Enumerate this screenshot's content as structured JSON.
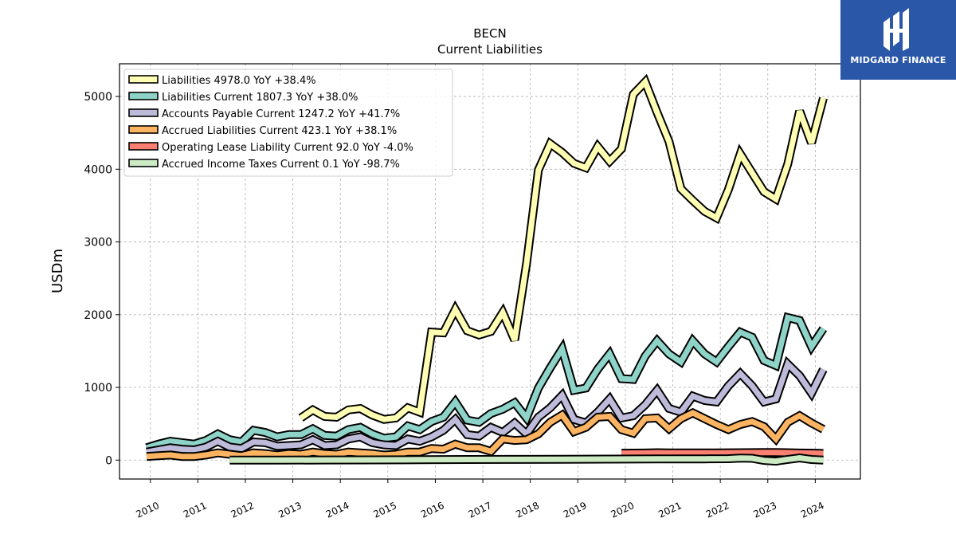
{
  "brand": {
    "name": "MIDGARD FINANCE"
  },
  "chart_data": {
    "type": "line",
    "title": "BECN",
    "subtitle": "Current  Liabilities",
    "xlabel": "",
    "ylabel": "USDm",
    "xlim": [
      2009.35,
      2024.95
    ],
    "ylim": [
      -260,
      5450
    ],
    "yticks": [
      0,
      1000,
      2000,
      3000,
      4000,
      5000
    ],
    "xticks": [
      2010,
      2011,
      2012,
      2013,
      2014,
      2015,
      2016,
      2017,
      2018,
      2019,
      2020,
      2021,
      2022,
      2023,
      2024
    ],
    "grid": true,
    "legend_position": "top-left",
    "series": [
      {
        "name": "Liabilities",
        "legend": "Liabilities  4978.0 YoY +38.4%",
        "color": "#ffffb3",
        "x": [
          2013.17,
          2013.42,
          2013.67,
          2013.92,
          2014.17,
          2014.42,
          2014.67,
          2014.92,
          2015.17,
          2015.42,
          2015.67,
          2015.92,
          2016.17,
          2016.42,
          2016.67,
          2016.92,
          2017.17,
          2017.42,
          2017.67,
          2017.92,
          2018.17,
          2018.42,
          2018.67,
          2018.92,
          2019.17,
          2019.42,
          2019.67,
          2019.92,
          2020.17,
          2020.42,
          2020.67,
          2020.92,
          2021.17,
          2021.42,
          2021.67,
          2021.92,
          2022.17,
          2022.42,
          2022.67,
          2022.92,
          2023.17,
          2023.42,
          2023.67,
          2023.92,
          2024.17
        ],
        "y": [
          580,
          690,
          600,
          590,
          690,
          710,
          620,
          560,
          580,
          720,
          660,
          1760,
          1750,
          2070,
          1780,
          1720,
          1770,
          2030,
          1650,
          2700,
          3990,
          4350,
          4230,
          4080,
          4020,
          4310,
          4110,
          4280,
          5030,
          5200,
          4780,
          4380,
          3730,
          3570,
          3420,
          3330,
          3720,
          4210,
          3950,
          3690,
          3590,
          4070,
          4800,
          4360,
          4978
        ]
      },
      {
        "name": "Liabilities Current",
        "legend": "Liabilities Current  1807.3 YoY +38.0%",
        "color": "#8dd3c7",
        "x": [
          2009.92,
          2010.17,
          2010.42,
          2010.67,
          2010.92,
          2011.17,
          2011.42,
          2011.67,
          2011.92,
          2012.17,
          2012.42,
          2012.67,
          2012.92,
          2013.17,
          2013.42,
          2013.67,
          2013.92,
          2014.17,
          2014.42,
          2014.67,
          2014.92,
          2015.17,
          2015.42,
          2015.67,
          2015.92,
          2016.17,
          2016.42,
          2016.67,
          2016.92,
          2017.17,
          2017.42,
          2017.67,
          2017.92,
          2018.17,
          2018.42,
          2018.67,
          2018.92,
          2019.17,
          2019.42,
          2019.67,
          2019.92,
          2020.17,
          2020.42,
          2020.67,
          2020.92,
          2021.17,
          2021.42,
          2021.67,
          2021.92,
          2022.17,
          2022.42,
          2022.67,
          2022.92,
          2023.17,
          2023.42,
          2023.67,
          2023.92,
          2024.17
        ],
        "y": [
          170,
          220,
          260,
          240,
          220,
          270,
          360,
          280,
          250,
          410,
          380,
          320,
          350,
          350,
          430,
          340,
          330,
          420,
          450,
          360,
          300,
          320,
          470,
          420,
          530,
          590,
          800,
          550,
          520,
          640,
          700,
          790,
          580,
          990,
          1270,
          1530,
          960,
          990,
          1250,
          1460,
          1120,
          1110,
          1430,
          1640,
          1460,
          1350,
          1640,
          1460,
          1350,
          1560,
          1760,
          1690,
          1370,
          1300,
          1960,
          1920,
          1560,
          1807
        ]
      },
      {
        "name": "Accounts Payable Current",
        "legend": "Accounts Payable Current  1247.2 YoY +41.7%",
        "color": "#bebada",
        "x": [
          2009.92,
          2010.17,
          2010.42,
          2010.67,
          2010.92,
          2011.17,
          2011.42,
          2011.67,
          2011.92,
          2012.17,
          2012.42,
          2012.67,
          2012.92,
          2013.17,
          2013.42,
          2013.67,
          2013.92,
          2014.17,
          2014.42,
          2014.67,
          2014.92,
          2015.17,
          2015.42,
          2015.67,
          2015.92,
          2016.17,
          2016.42,
          2016.67,
          2016.92,
          2017.17,
          2017.42,
          2017.67,
          2017.92,
          2018.17,
          2018.42,
          2018.67,
          2018.92,
          2019.17,
          2019.42,
          2019.67,
          2019.92,
          2020.17,
          2020.42,
          2020.67,
          2020.92,
          2021.17,
          2021.42,
          2021.67,
          2021.92,
          2022.17,
          2022.42,
          2022.67,
          2022.92,
          2023.17,
          2023.42,
          2023.67,
          2023.92,
          2024.17
        ],
        "y": [
          110,
          140,
          170,
          150,
          140,
          180,
          260,
          180,
          160,
          250,
          240,
          190,
          200,
          210,
          280,
          200,
          210,
          290,
          320,
          240,
          210,
          200,
          290,
          260,
          320,
          410,
          560,
          350,
          330,
          450,
          380,
          510,
          360,
          590,
          720,
          890,
          560,
          510,
          660,
          840,
          580,
          610,
          760,
          960,
          710,
          660,
          880,
          820,
          800,
          1020,
          1190,
          1020,
          800,
          840,
          1320,
          1160,
          920,
          1247
        ]
      },
      {
        "name": "Accrued Liabilities Current",
        "legend": "Accrued Liabilities Current  423.1 YoY +38.1%",
        "color": "#fdb462",
        "x": [
          2009.92,
          2010.17,
          2010.42,
          2010.67,
          2010.92,
          2011.17,
          2011.42,
          2011.67,
          2011.92,
          2012.17,
          2012.42,
          2012.67,
          2012.92,
          2013.17,
          2013.42,
          2013.67,
          2013.92,
          2014.17,
          2014.42,
          2014.67,
          2014.92,
          2015.17,
          2015.42,
          2015.67,
          2015.92,
          2016.17,
          2016.42,
          2016.67,
          2016.92,
          2017.17,
          2017.42,
          2017.67,
          2017.92,
          2018.17,
          2018.42,
          2018.67,
          2018.92,
          2019.17,
          2019.42,
          2019.67,
          2019.92,
          2020.17,
          2020.42,
          2020.67,
          2020.92,
          2021.17,
          2021.42,
          2021.67,
          2021.92,
          2022.17,
          2022.42,
          2022.67,
          2022.92,
          2023.17,
          2023.42,
          2023.67,
          2023.92,
          2024.17
        ],
        "y": [
          50,
          60,
          70,
          50,
          50,
          70,
          100,
          80,
          60,
          100,
          90,
          70,
          90,
          80,
          110,
          90,
          80,
          110,
          100,
          90,
          70,
          80,
          110,
          110,
          160,
          150,
          220,
          170,
          170,
          120,
          290,
          270,
          280,
          360,
          520,
          620,
          390,
          450,
          590,
          600,
          420,
          370,
          570,
          580,
          430,
          570,
          650,
          570,
          490,
          420,
          490,
          530,
          460,
          290,
          520,
          610,
          510,
          423
        ]
      },
      {
        "name": "Operating Lease Liability Current",
        "legend": "Operating Lease Liability Current  92.0 YoY -4.0%",
        "color": "#fb8072",
        "x": [
          2019.92,
          2020.17,
          2020.42,
          2020.67,
          2020.92,
          2021.17,
          2021.42,
          2021.67,
          2021.92,
          2022.17,
          2022.42,
          2022.67,
          2022.92,
          2023.17,
          2023.42,
          2023.67,
          2023.92,
          2024.17
        ],
        "y": [
          95,
          96,
          97,
          102,
          100,
          98,
          98,
          99,
          100,
          101,
          102,
          103,
          104,
          104,
          102,
          97,
          96,
          92
        ]
      },
      {
        "name": "Accrued Income Taxes Current",
        "legend": "Accrued Income Taxes Current  0.1 YoY -98.7%",
        "color": "#ccebc5",
        "x": [
          2011.67,
          2012.67,
          2013.67,
          2014.67,
          2015.67,
          2016.67,
          2017.67,
          2018.67,
          2019.67,
          2020.67,
          2021.67,
          2022.17,
          2022.42,
          2022.67,
          2022.92,
          2023.17,
          2023.42,
          2023.67,
          2023.92,
          2024.17
        ],
        "y": [
          0,
          0,
          2,
          3,
          5,
          8,
          10,
          12,
          14,
          16,
          17,
          19,
          28,
          25,
          -5,
          -15,
          10,
          30,
          8,
          0.1
        ]
      }
    ]
  }
}
